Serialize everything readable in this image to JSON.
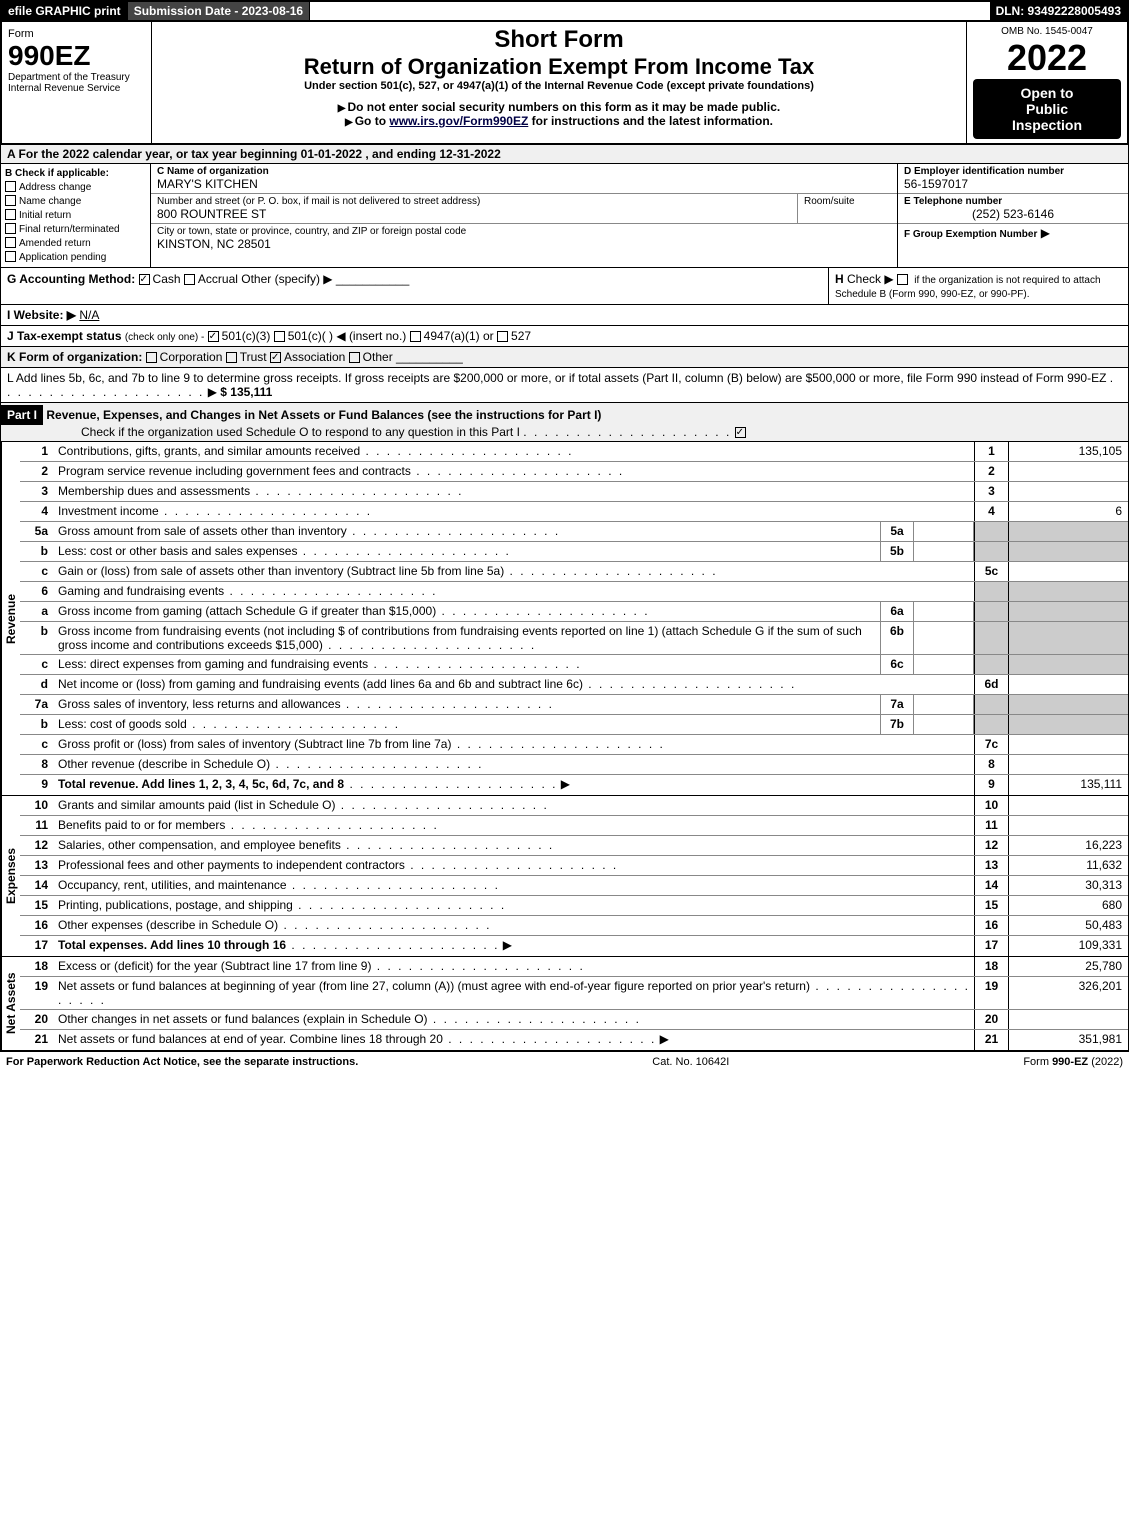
{
  "topbar": {
    "efile": "efile GRAPHIC print",
    "submission": "Submission Date - 2023-08-16",
    "dln": "DLN: 93492228005493"
  },
  "header": {
    "form_label": "Form",
    "form_num": "990EZ",
    "dept": "Department of the Treasury",
    "irs": "Internal Revenue Service",
    "short_form": "Short Form",
    "return_title": "Return of Organization Exempt From Income Tax",
    "under_section": "Under section 501(c), 527, or 4947(a)(1) of the Internal Revenue Code (except private foundations)",
    "warn1": "Do not enter social security numbers on this form as it may be made public.",
    "warn2": "Go to www.irs.gov/Form990EZ for instructions and the latest information.",
    "warn2_link": "www.irs.gov/Form990EZ",
    "omb": "OMB No. 1545-0047",
    "year": "2022",
    "open1": "Open to",
    "open2": "Public",
    "open3": "Inspection"
  },
  "sectionA": "A  For the 2022 calendar year, or tax year beginning 01-01-2022 , and ending 12-31-2022",
  "checkB": {
    "title": "B  Check if applicable:",
    "opts": [
      "Address change",
      "Name change",
      "Initial return",
      "Final return/terminated",
      "Amended return",
      "Application pending"
    ]
  },
  "boxC": {
    "label": "C Name of organization",
    "name": "MARY'S KITCHEN",
    "street_label": "Number and street (or P. O. box, if mail is not delivered to street address)",
    "street": "800 ROUNTREE ST",
    "room_label": "Room/suite",
    "city_label": "City or town, state or province, country, and ZIP or foreign postal code",
    "city": "KINSTON, NC  28501"
  },
  "boxD": {
    "label": "D Employer identification number",
    "value": "56-1597017"
  },
  "boxE": {
    "label": "E Telephone number",
    "value": "(252) 523-6146"
  },
  "boxF": {
    "label": "F Group Exemption Number",
    "arrow": "▶"
  },
  "lineG": {
    "label": "G Accounting Method:",
    "cash": "Cash",
    "accrual": "Accrual",
    "other": "Other (specify) ▶"
  },
  "lineH": {
    "label": "H",
    "text": "Check ▶",
    "desc": "if the organization is not required to attach Schedule B (Form 990, 990-EZ, or 990-PF)."
  },
  "lineI": {
    "label": "I Website: ▶",
    "value": "N/A"
  },
  "lineJ": {
    "label": "J Tax-exempt status",
    "note": "(check only one) -",
    "opts": [
      "501(c)(3)",
      "501(c)(  ) ◀ (insert no.)",
      "4947(a)(1) or",
      "527"
    ]
  },
  "lineK": {
    "label": "K Form of organization:",
    "opts": [
      "Corporation",
      "Trust",
      "Association",
      "Other"
    ]
  },
  "lineL": {
    "text": "L Add lines 5b, 6c, and 7b to line 9 to determine gross receipts. If gross receipts are $200,000 or more, or if total assets (Part II, column (B) below) are $500,000 or more, file Form 990 instead of Form 990-EZ",
    "amount": "$ 135,111"
  },
  "part1": {
    "header": "Part I",
    "title": "Revenue, Expenses, and Changes in Net Assets or Fund Balances (see the instructions for Part I)",
    "check_text": "Check if the organization used Schedule O to respond to any question in this Part I"
  },
  "sections": {
    "revenue": "Revenue",
    "expenses": "Expenses",
    "netassets": "Net Assets"
  },
  "lines": [
    {
      "n": "1",
      "d": "Contributions, gifts, grants, and similar amounts received",
      "rn": "1",
      "v": "135,105"
    },
    {
      "n": "2",
      "d": "Program service revenue including government fees and contracts",
      "rn": "2",
      "v": ""
    },
    {
      "n": "3",
      "d": "Membership dues and assessments",
      "rn": "3",
      "v": ""
    },
    {
      "n": "4",
      "d": "Investment income",
      "rn": "4",
      "v": "6"
    },
    {
      "n": "5a",
      "d": "Gross amount from sale of assets other than inventory",
      "sub": "5a",
      "shaded": true
    },
    {
      "n": "b",
      "d": "Less: cost or other basis and sales expenses",
      "sub": "5b",
      "shaded": true
    },
    {
      "n": "c",
      "d": "Gain or (loss) from sale of assets other than inventory (Subtract line 5b from line 5a)",
      "rn": "5c",
      "v": ""
    },
    {
      "n": "6",
      "d": "Gaming and fundraising events",
      "shaded": true,
      "noresult": true
    },
    {
      "n": "a",
      "d": "Gross income from gaming (attach Schedule G if greater than $15,000)",
      "sub": "6a",
      "shaded": true
    },
    {
      "n": "b",
      "d": "Gross income from fundraising events (not including $                       of contributions from fundraising events reported on line 1) (attach Schedule G if the sum of such gross income and contributions exceeds $15,000)",
      "sub": "6b",
      "shaded": true
    },
    {
      "n": "c",
      "d": "Less: direct expenses from gaming and fundraising events",
      "sub": "6c",
      "shaded": true
    },
    {
      "n": "d",
      "d": "Net income or (loss) from gaming and fundraising events (add lines 6a and 6b and subtract line 6c)",
      "rn": "6d",
      "v": ""
    },
    {
      "n": "7a",
      "d": "Gross sales of inventory, less returns and allowances",
      "sub": "7a",
      "shaded": true
    },
    {
      "n": "b",
      "d": "Less: cost of goods sold",
      "sub": "7b",
      "shaded": true
    },
    {
      "n": "c",
      "d": "Gross profit or (loss) from sales of inventory (Subtract line 7b from line 7a)",
      "rn": "7c",
      "v": ""
    },
    {
      "n": "8",
      "d": "Other revenue (describe in Schedule O)",
      "rn": "8",
      "v": ""
    },
    {
      "n": "9",
      "d": "Total revenue. Add lines 1, 2, 3, 4, 5c, 6d, 7c, and 8",
      "rn": "9",
      "v": "135,111",
      "bold": true,
      "arrow": true
    }
  ],
  "exp_lines": [
    {
      "n": "10",
      "d": "Grants and similar amounts paid (list in Schedule O)",
      "rn": "10",
      "v": ""
    },
    {
      "n": "11",
      "d": "Benefits paid to or for members",
      "rn": "11",
      "v": ""
    },
    {
      "n": "12",
      "d": "Salaries, other compensation, and employee benefits",
      "rn": "12",
      "v": "16,223"
    },
    {
      "n": "13",
      "d": "Professional fees and other payments to independent contractors",
      "rn": "13",
      "v": "11,632"
    },
    {
      "n": "14",
      "d": "Occupancy, rent, utilities, and maintenance",
      "rn": "14",
      "v": "30,313"
    },
    {
      "n": "15",
      "d": "Printing, publications, postage, and shipping",
      "rn": "15",
      "v": "680"
    },
    {
      "n": "16",
      "d": "Other expenses (describe in Schedule O)",
      "rn": "16",
      "v": "50,483"
    },
    {
      "n": "17",
      "d": "Total expenses. Add lines 10 through 16",
      "rn": "17",
      "v": "109,331",
      "bold": true,
      "arrow": true
    }
  ],
  "net_lines": [
    {
      "n": "18",
      "d": "Excess or (deficit) for the year (Subtract line 17 from line 9)",
      "rn": "18",
      "v": "25,780"
    },
    {
      "n": "19",
      "d": "Net assets or fund balances at beginning of year (from line 27, column (A)) (must agree with end-of-year figure reported on prior year's return)",
      "rn": "19",
      "v": "326,201"
    },
    {
      "n": "20",
      "d": "Other changes in net assets or fund balances (explain in Schedule O)",
      "rn": "20",
      "v": ""
    },
    {
      "n": "21",
      "d": "Net assets or fund balances at end of year. Combine lines 18 through 20",
      "rn": "21",
      "v": "351,981",
      "arrow": true
    }
  ],
  "footer": {
    "left": "For Paperwork Reduction Act Notice, see the separate instructions.",
    "center": "Cat. No. 10642I",
    "right": "Form 990-EZ (2022)"
  },
  "colors": {
    "black": "#000000",
    "white": "#ffffff",
    "gray_shade": "#cccccc",
    "header_gray": "#444444",
    "link": "#000044"
  }
}
